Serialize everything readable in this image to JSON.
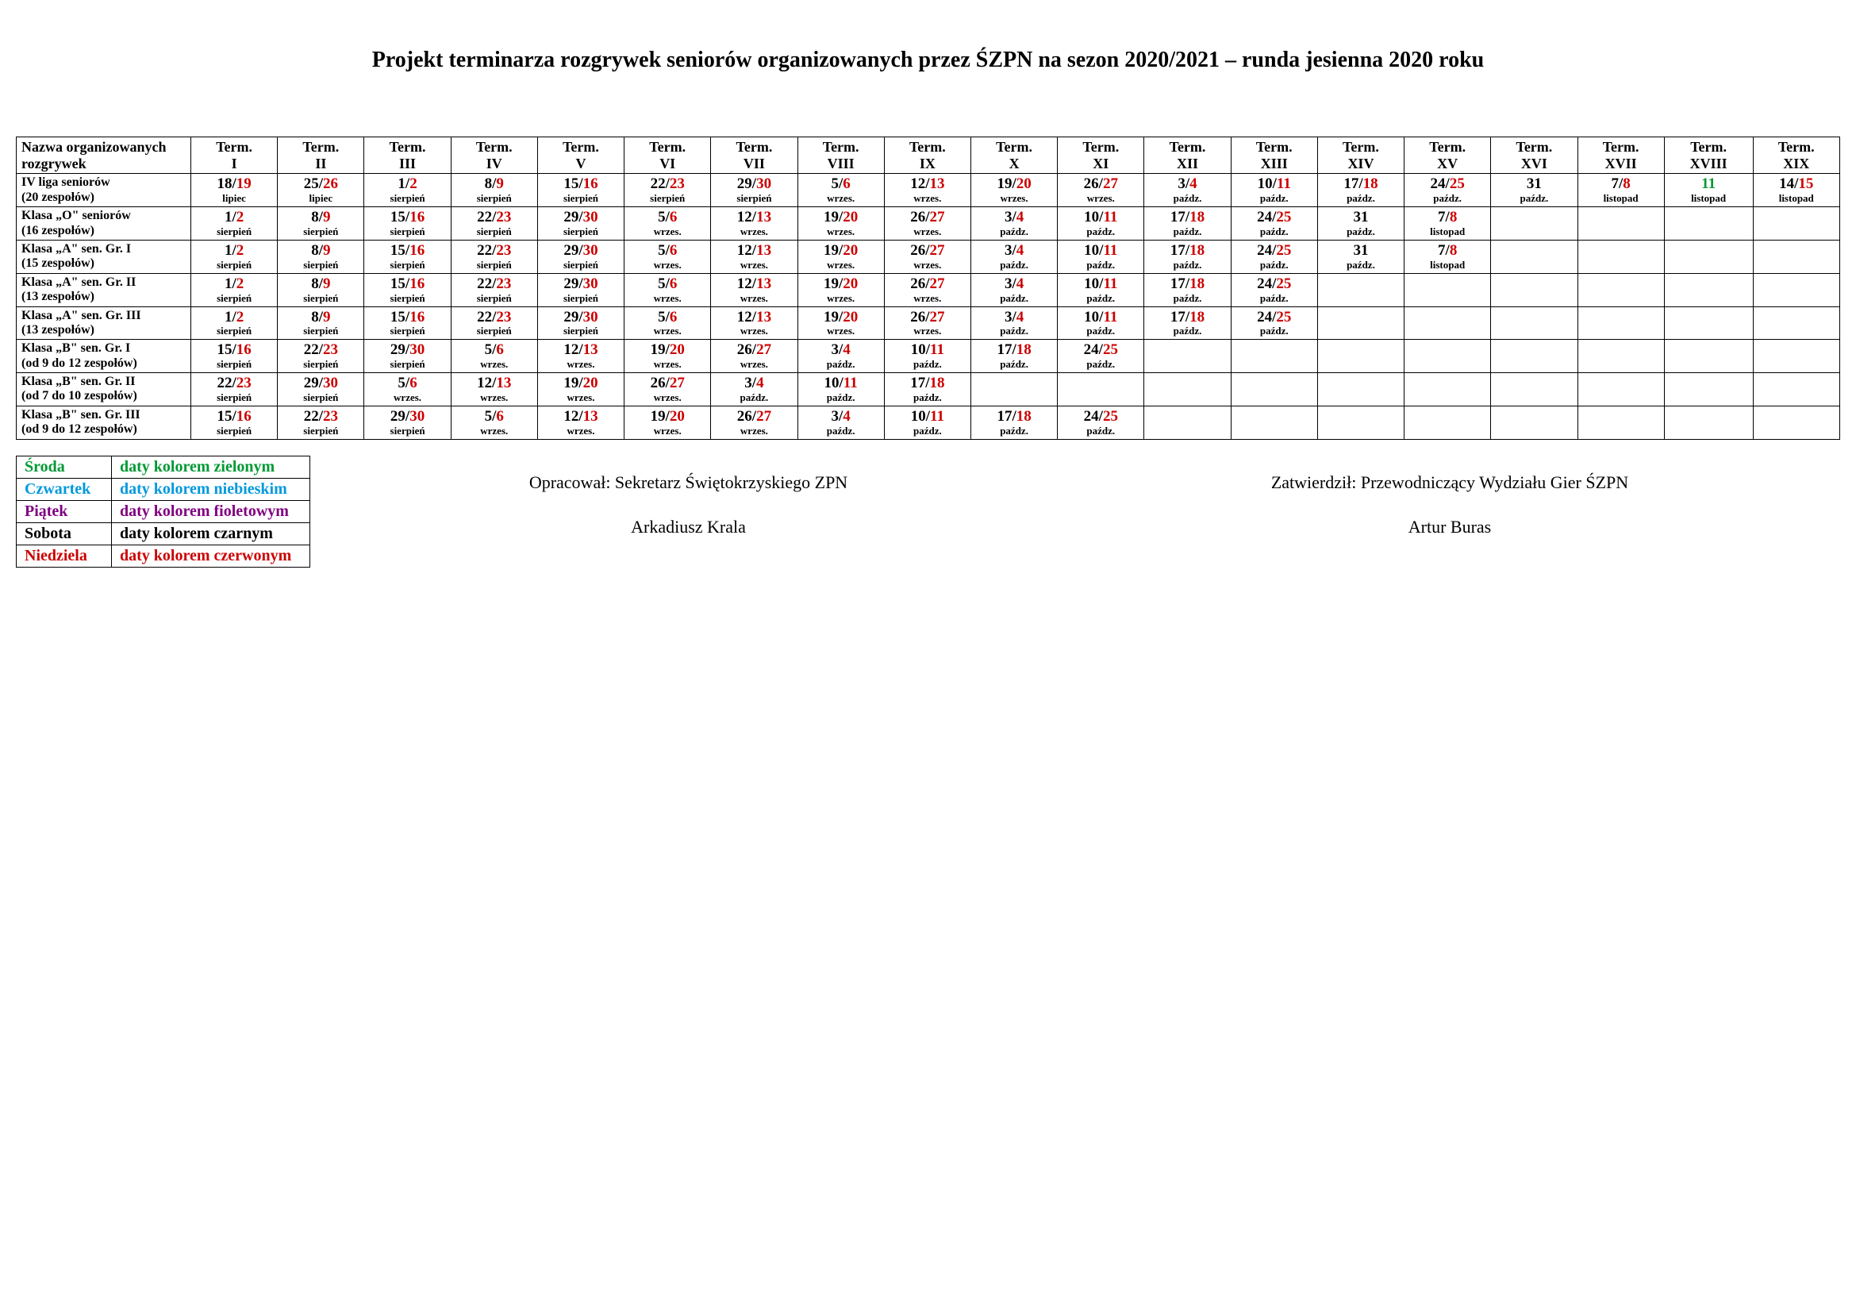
{
  "title": "Projekt terminarza rozgrywek seniorów organizowanych przez ŚZPN na sezon 2020/2021 – runda jesienna 2020 roku",
  "header_first": "Nazwa  organizowanych rozgrywek",
  "terms": [
    "Term. I",
    "Term. II",
    "Term. III",
    "Term. IV",
    "Term. V",
    "Term. VI",
    "Term. VII",
    "Term. VIII",
    "Term. IX",
    "Term. X",
    "Term. XI",
    "Term. XII",
    "Term. XIII",
    "Term. XIV",
    "Term. XV",
    "Term. XVI",
    "Term. XVII",
    "Term. XVIII",
    "Term. XIX"
  ],
  "rows": [
    {
      "name": "IV liga seniorów (20 zespołów)",
      "cells": [
        {
          "d1": "18",
          "c1": "black",
          "d2": "19",
          "c2": "red",
          "m": "lipiec"
        },
        {
          "d1": "25",
          "c1": "black",
          "d2": "26",
          "c2": "red",
          "m": "lipiec"
        },
        {
          "d1": "1",
          "c1": "black",
          "d2": "2",
          "c2": "red",
          "m": "sierpień"
        },
        {
          "d1": "8",
          "c1": "black",
          "d2": "9",
          "c2": "red",
          "m": "sierpień"
        },
        {
          "d1": "15",
          "c1": "black",
          "d2": "16",
          "c2": "red",
          "m": "sierpień"
        },
        {
          "d1": "22",
          "c1": "black",
          "d2": "23",
          "c2": "red",
          "m": "sierpień"
        },
        {
          "d1": "29",
          "c1": "black",
          "d2": "30",
          "c2": "red",
          "m": "sierpień"
        },
        {
          "d1": "5",
          "c1": "black",
          "d2": "6",
          "c2": "red",
          "m": "wrzes."
        },
        {
          "d1": "12",
          "c1": "black",
          "d2": "13",
          "c2": "red",
          "m": "wrzes."
        },
        {
          "d1": "19",
          "c1": "black",
          "d2": "20",
          "c2": "red",
          "m": "wrzes."
        },
        {
          "d1": "26",
          "c1": "black",
          "d2": "27",
          "c2": "red",
          "m": "wrzes."
        },
        {
          "d1": "3",
          "c1": "black",
          "d2": "4",
          "c2": "red",
          "m": "paźdz."
        },
        {
          "d1": "10",
          "c1": "black",
          "d2": "11",
          "c2": "red",
          "m": "paźdz."
        },
        {
          "d1": "17",
          "c1": "black",
          "d2": "18",
          "c2": "red",
          "m": "paźdz."
        },
        {
          "d1": "24",
          "c1": "black",
          "d2": "25",
          "c2": "red",
          "m": "paźdz."
        },
        {
          "d1": "31",
          "c1": "black",
          "m": "paźdz."
        },
        {
          "d1": "7",
          "c1": "black",
          "d2": "8",
          "c2": "red",
          "m": "listopad"
        },
        {
          "d1": "11",
          "c1": "green",
          "m": "listopad"
        },
        {
          "d1": "14",
          "c1": "black",
          "d2": "15",
          "c2": "red",
          "m": "listopad"
        }
      ]
    },
    {
      "name": "Klasa „O\" seniorów (16 zespołów)",
      "cells": [
        {
          "d1": "1",
          "c1": "black",
          "d2": "2",
          "c2": "red",
          "m": "sierpień"
        },
        {
          "d1": "8",
          "c1": "black",
          "d2": "9",
          "c2": "red",
          "m": "sierpień"
        },
        {
          "d1": "15",
          "c1": "black",
          "d2": "16",
          "c2": "red",
          "m": "sierpień"
        },
        {
          "d1": "22",
          "c1": "black",
          "d2": "23",
          "c2": "red",
          "m": "sierpień"
        },
        {
          "d1": "29",
          "c1": "black",
          "d2": "30",
          "c2": "red",
          "m": "sierpień"
        },
        {
          "d1": "5",
          "c1": "black",
          "d2": "6",
          "c2": "red",
          "m": "wrzes."
        },
        {
          "d1": "12",
          "c1": "black",
          "d2": "13",
          "c2": "red",
          "m": "wrzes."
        },
        {
          "d1": "19",
          "c1": "black",
          "d2": "20",
          "c2": "red",
          "m": "wrzes."
        },
        {
          "d1": "26",
          "c1": "black",
          "d2": "27",
          "c2": "red",
          "m": "wrzes."
        },
        {
          "d1": "3",
          "c1": "black",
          "d2": "4",
          "c2": "red",
          "m": "paźdz."
        },
        {
          "d1": "10",
          "c1": "black",
          "d2": "11",
          "c2": "red",
          "m": "paźdz."
        },
        {
          "d1": "17",
          "c1": "black",
          "d2": "18",
          "c2": "red",
          "m": "paźdz."
        },
        {
          "d1": "24",
          "c1": "black",
          "d2": "25",
          "c2": "red",
          "m": "paźdz."
        },
        {
          "d1": "31",
          "c1": "black",
          "m": "paźdz."
        },
        {
          "d1": "7",
          "c1": "black",
          "d2": "8",
          "c2": "red",
          "m": "listopad"
        },
        null,
        null,
        null,
        null
      ]
    },
    {
      "name": "Klasa „A\" sen. Gr. I (15 zespołów)",
      "cells": [
        {
          "d1": "1",
          "c1": "black",
          "d2": "2",
          "c2": "red",
          "m": "sierpień"
        },
        {
          "d1": "8",
          "c1": "black",
          "d2": "9",
          "c2": "red",
          "m": "sierpień"
        },
        {
          "d1": "15",
          "c1": "black",
          "d2": "16",
          "c2": "red",
          "m": "sierpień"
        },
        {
          "d1": "22",
          "c1": "black",
          "d2": "23",
          "c2": "red",
          "m": "sierpień"
        },
        {
          "d1": "29",
          "c1": "black",
          "d2": "30",
          "c2": "red",
          "m": "sierpień"
        },
        {
          "d1": "5",
          "c1": "black",
          "d2": "6",
          "c2": "red",
          "m": "wrzes."
        },
        {
          "d1": "12",
          "c1": "black",
          "d2": "13",
          "c2": "red",
          "m": "wrzes."
        },
        {
          "d1": "19",
          "c1": "black",
          "d2": "20",
          "c2": "red",
          "m": "wrzes."
        },
        {
          "d1": "26",
          "c1": "black",
          "d2": "27",
          "c2": "red",
          "m": "wrzes."
        },
        {
          "d1": "3",
          "c1": "black",
          "d2": "4",
          "c2": "red",
          "m": "paźdz."
        },
        {
          "d1": "10",
          "c1": "black",
          "d2": "11",
          "c2": "red",
          "m": "paźdz."
        },
        {
          "d1": "17",
          "c1": "black",
          "d2": "18",
          "c2": "red",
          "m": "paźdz."
        },
        {
          "d1": "24",
          "c1": "black",
          "d2": "25",
          "c2": "red",
          "m": "paźdz."
        },
        {
          "d1": "31",
          "c1": "black",
          "m": "paźdz."
        },
        {
          "d1": "7",
          "c1": "black",
          "d2": "8",
          "c2": "red",
          "m": "listopad"
        },
        null,
        null,
        null,
        null
      ]
    },
    {
      "name": "Klasa „A\" sen. Gr. II (13 zespołów)",
      "cells": [
        {
          "d1": "1",
          "c1": "black",
          "d2": "2",
          "c2": "red",
          "m": "sierpień"
        },
        {
          "d1": "8",
          "c1": "black",
          "d2": "9",
          "c2": "red",
          "m": "sierpień"
        },
        {
          "d1": "15",
          "c1": "black",
          "d2": "16",
          "c2": "red",
          "m": "sierpień"
        },
        {
          "d1": "22",
          "c1": "black",
          "d2": "23",
          "c2": "red",
          "m": "sierpień"
        },
        {
          "d1": "29",
          "c1": "black",
          "d2": "30",
          "c2": "red",
          "m": "sierpień"
        },
        {
          "d1": "5",
          "c1": "black",
          "d2": "6",
          "c2": "red",
          "m": "wrzes."
        },
        {
          "d1": "12",
          "c1": "black",
          "d2": "13",
          "c2": "red",
          "m": "wrzes."
        },
        {
          "d1": "19",
          "c1": "black",
          "d2": "20",
          "c2": "red",
          "m": "wrzes."
        },
        {
          "d1": "26",
          "c1": "black",
          "d2": "27",
          "c2": "red",
          "m": "wrzes."
        },
        {
          "d1": "3",
          "c1": "black",
          "d2": "4",
          "c2": "red",
          "m": "paźdz."
        },
        {
          "d1": "10",
          "c1": "black",
          "d2": "11",
          "c2": "red",
          "m": "paźdz."
        },
        {
          "d1": "17",
          "c1": "black",
          "d2": "18",
          "c2": "red",
          "m": "paźdz."
        },
        {
          "d1": "24",
          "c1": "black",
          "d2": "25",
          "c2": "red",
          "m": "paźdz."
        },
        null,
        null,
        null,
        null,
        null,
        null
      ]
    },
    {
      "name": "Klasa „A\" sen. Gr. III (13 zespołów)",
      "cells": [
        {
          "d1": "1",
          "c1": "black",
          "d2": "2",
          "c2": "red",
          "m": "sierpień"
        },
        {
          "d1": "8",
          "c1": "black",
          "d2": "9",
          "c2": "red",
          "m": "sierpień"
        },
        {
          "d1": "15",
          "c1": "black",
          "d2": "16",
          "c2": "red",
          "m": "sierpień"
        },
        {
          "d1": "22",
          "c1": "black",
          "d2": "23",
          "c2": "red",
          "m": "sierpień"
        },
        {
          "d1": "29",
          "c1": "black",
          "d2": "30",
          "c2": "red",
          "m": "sierpień"
        },
        {
          "d1": "5",
          "c1": "black",
          "d2": "6",
          "c2": "red",
          "m": "wrzes."
        },
        {
          "d1": "12",
          "c1": "black",
          "d2": "13",
          "c2": "red",
          "m": "wrzes."
        },
        {
          "d1": "19",
          "c1": "black",
          "d2": "20",
          "c2": "red",
          "m": "wrzes."
        },
        {
          "d1": "26",
          "c1": "black",
          "d2": "27",
          "c2": "red",
          "m": "wrzes."
        },
        {
          "d1": "3",
          "c1": "black",
          "d2": "4",
          "c2": "red",
          "m": "paźdz."
        },
        {
          "d1": "10",
          "c1": "black",
          "d2": "11",
          "c2": "red",
          "m": "paźdz."
        },
        {
          "d1": "17",
          "c1": "black",
          "d2": "18",
          "c2": "red",
          "m": "paźdz."
        },
        {
          "d1": "24",
          "c1": "black",
          "d2": "25",
          "c2": "red",
          "m": "paźdz."
        },
        null,
        null,
        null,
        null,
        null,
        null
      ]
    },
    {
      "name": "Klasa „B\" sen. Gr. I (od 9 do 12 zespołów)",
      "cells": [
        {
          "d1": "15",
          "c1": "black",
          "d2": "16",
          "c2": "red",
          "m": "sierpień"
        },
        {
          "d1": "22",
          "c1": "black",
          "d2": "23",
          "c2": "red",
          "m": "sierpień"
        },
        {
          "d1": "29",
          "c1": "black",
          "d2": "30",
          "c2": "red",
          "m": "sierpień"
        },
        {
          "d1": "5",
          "c1": "black",
          "d2": "6",
          "c2": "red",
          "m": "wrzes."
        },
        {
          "d1": "12",
          "c1": "black",
          "d2": "13",
          "c2": "red",
          "m": "wrzes."
        },
        {
          "d1": "19",
          "c1": "black",
          "d2": "20",
          "c2": "red",
          "m": "wrzes."
        },
        {
          "d1": "26",
          "c1": "black",
          "d2": "27",
          "c2": "red",
          "m": "wrzes."
        },
        {
          "d1": "3",
          "c1": "black",
          "d2": "4",
          "c2": "red",
          "m": "paźdz."
        },
        {
          "d1": "10",
          "c1": "black",
          "d2": "11",
          "c2": "red",
          "m": "paźdz."
        },
        {
          "d1": "17",
          "c1": "black",
          "d2": "18",
          "c2": "red",
          "m": "paźdz."
        },
        {
          "d1": "24",
          "c1": "black",
          "d2": "25",
          "c2": "red",
          "m": "paźdz."
        },
        null,
        null,
        null,
        null,
        null,
        null,
        null,
        null
      ]
    },
    {
      "name": "Klasa „B\" sen. Gr. II (od 7 do 10 zespołów)",
      "cells": [
        {
          "d1": "22",
          "c1": "black",
          "d2": "23",
          "c2": "red",
          "m": "sierpień"
        },
        {
          "d1": "29",
          "c1": "black",
          "d2": "30",
          "c2": "red",
          "m": "sierpień"
        },
        {
          "d1": "5",
          "c1": "black",
          "d2": "6",
          "c2": "red",
          "m": "wrzes."
        },
        {
          "d1": "12",
          "c1": "black",
          "d2": "13",
          "c2": "red",
          "m": "wrzes."
        },
        {
          "d1": "19",
          "c1": "black",
          "d2": "20",
          "c2": "red",
          "m": "wrzes."
        },
        {
          "d1": "26",
          "c1": "black",
          "d2": "27",
          "c2": "red",
          "m": "wrzes."
        },
        {
          "d1": "3",
          "c1": "black",
          "d2": "4",
          "c2": "red",
          "m": "paźdz."
        },
        {
          "d1": "10",
          "c1": "black",
          "d2": "11",
          "c2": "red",
          "m": "paźdz."
        },
        {
          "d1": "17",
          "c1": "black",
          "d2": "18",
          "c2": "red",
          "m": "paźdz."
        },
        null,
        null,
        null,
        null,
        null,
        null,
        null,
        null,
        null,
        null
      ]
    },
    {
      "name": "Klasa „B\" sen. Gr. III (od 9 do 12 zespołów)",
      "cells": [
        {
          "d1": "15",
          "c1": "black",
          "d2": "16",
          "c2": "red",
          "m": "sierpień"
        },
        {
          "d1": "22",
          "c1": "black",
          "d2": "23",
          "c2": "red",
          "m": "sierpień"
        },
        {
          "d1": "29",
          "c1": "black",
          "d2": "30",
          "c2": "red",
          "m": "sierpień"
        },
        {
          "d1": "5",
          "c1": "black",
          "d2": "6",
          "c2": "red",
          "m": "wrzes."
        },
        {
          "d1": "12",
          "c1": "black",
          "d2": "13",
          "c2": "red",
          "m": "wrzes."
        },
        {
          "d1": "19",
          "c1": "black",
          "d2": "20",
          "c2": "red",
          "m": "wrzes."
        },
        {
          "d1": "26",
          "c1": "black",
          "d2": "27",
          "c2": "red",
          "m": "wrzes."
        },
        {
          "d1": "3",
          "c1": "black",
          "d2": "4",
          "c2": "red",
          "m": "paźdz."
        },
        {
          "d1": "10",
          "c1": "black",
          "d2": "11",
          "c2": "red",
          "m": "paźdz."
        },
        {
          "d1": "17",
          "c1": "black",
          "d2": "18",
          "c2": "red",
          "m": "paźdz."
        },
        {
          "d1": "24",
          "c1": "black",
          "d2": "25",
          "c2": "red",
          "m": "paźdz."
        },
        null,
        null,
        null,
        null,
        null,
        null,
        null,
        null
      ]
    }
  ],
  "legend": [
    {
      "day": "Środa",
      "desc": "daty kolorem zielonym",
      "color": "green"
    },
    {
      "day": "Czwartek",
      "desc": "daty kolorem niebieskim",
      "color": "blue"
    },
    {
      "day": "Piątek",
      "desc": "daty kolorem fioletowym",
      "color": "purple"
    },
    {
      "day": "Sobota",
      "desc": "daty kolorem czarnym",
      "color": "black"
    },
    {
      "day": "Niedziela",
      "desc": "daty kolorem czerwonym",
      "color": "red"
    }
  ],
  "sig1": {
    "role": "Opracował:  Sekretarz Świętokrzyskiego ZPN",
    "name": "Arkadiusz Krala"
  },
  "sig2": {
    "role": "Zatwierdził: Przewodniczący Wydziału Gier ŚZPN",
    "name": "Artur Buras"
  }
}
